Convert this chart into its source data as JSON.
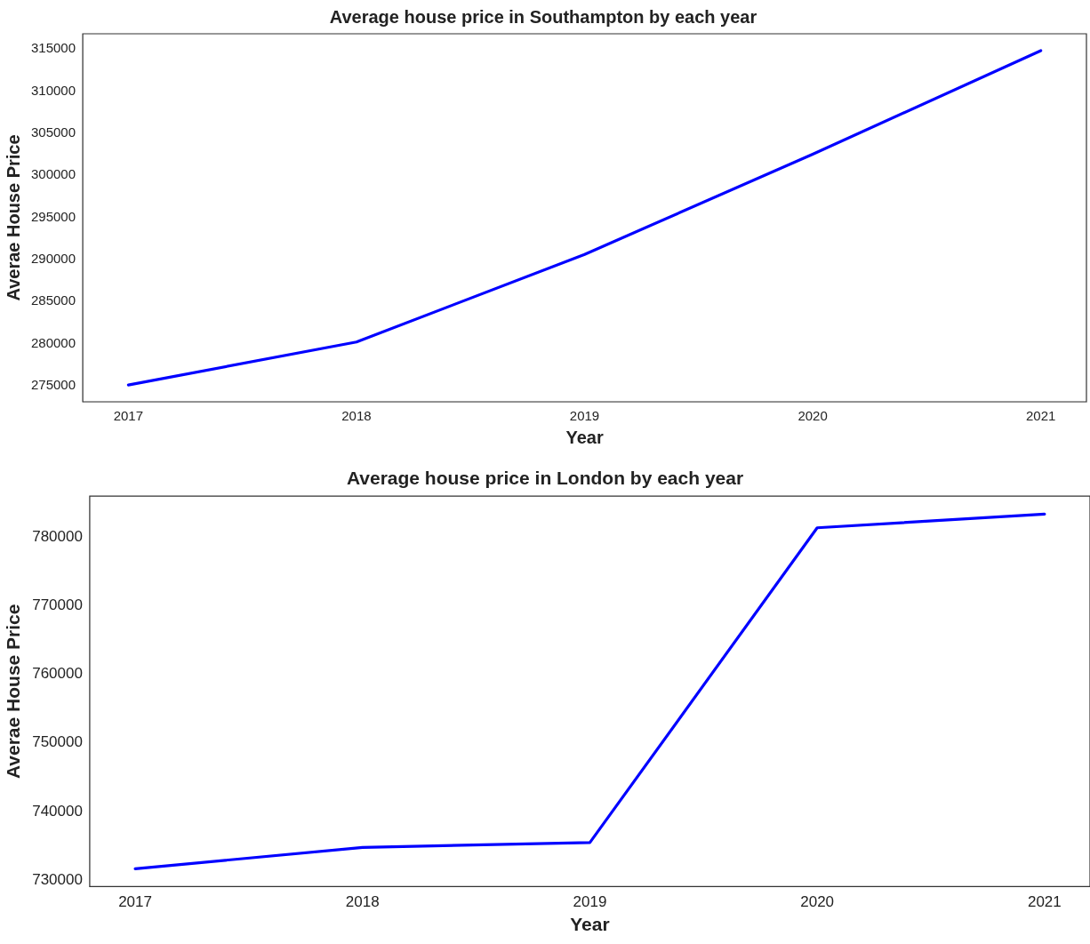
{
  "chart_data": [
    {
      "type": "line",
      "title": "Average house price in Southampton by each year",
      "xlabel": "Year",
      "ylabel": "Averae House Price",
      "x": [
        2017,
        2018,
        2019,
        2020,
        2021
      ],
      "series": [
        {
          "color": "#0000ff",
          "values": [
            275100,
            280200,
            290600,
            302500,
            314800
          ]
        }
      ],
      "xlim": [
        2016.8,
        2021.2
      ],
      "xticks": [
        2017,
        2018,
        2019,
        2020,
        2021
      ],
      "ylim": [
        273100,
        316800
      ],
      "yticks": [
        275000,
        280000,
        285000,
        290000,
        295000,
        300000,
        305000,
        310000,
        315000
      ]
    },
    {
      "type": "line",
      "title": "Average house price in London by each year",
      "xlabel": "Year",
      "ylabel": "Averae House Price",
      "x": [
        2017,
        2018,
        2019,
        2020,
        2021
      ],
      "series": [
        {
          "color": "#0000ff",
          "values": [
            731700,
            734800,
            735500,
            781300,
            783300
          ]
        }
      ],
      "xlim": [
        2016.8,
        2021.2
      ],
      "xticks": [
        2017,
        2018,
        2019,
        2020,
        2021
      ],
      "ylim": [
        729100,
        785900
      ],
      "yticks": [
        730000,
        740000,
        750000,
        760000,
        770000,
        780000
      ]
    }
  ]
}
